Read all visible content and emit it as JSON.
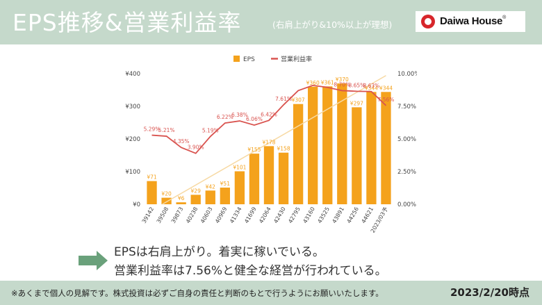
{
  "header": {
    "title": "EPS推移&営業利益率",
    "subtitle": "(右肩上がり&10%以上が理想)",
    "logo_text": "Daiwa House",
    "logo_mark": "®"
  },
  "message": {
    "line1": "EPSは右肩上がり。着実に稼いでいる。",
    "line2": "営業利益率は7.56%と健全な経営が行われている。"
  },
  "footer": {
    "disclaimer": "※あくまで個人の見解です。株式投資は必ずご自身の責任と判断のもとで行うようにお願いいたします。",
    "as_of": "2023/2/20時点"
  },
  "colors": {
    "header_bg": "#c5d9cb",
    "bar": "#f4a21c",
    "margin_line": "#d9534f",
    "trend_line": "#f7d9a3",
    "arrow": "#6aa17b"
  },
  "chart_data": {
    "type": "bar+line",
    "categories": [
      "39142",
      "39508",
      "39873",
      "40238",
      "40603",
      "40969",
      "41334",
      "41699",
      "42064",
      "42430",
      "42795",
      "43160",
      "43525",
      "43891",
      "44256",
      "44621",
      "2023/03予"
    ],
    "series": [
      {
        "name": "EPS",
        "axis": "left",
        "kind": "bar",
        "values": [
          71,
          20,
          6,
          29,
          42,
          51,
          101,
          155,
          178,
          158,
          307,
          360,
          361,
          370,
          297,
          344,
          344
        ],
        "labels": [
          "¥71",
          "¥20",
          "¥6",
          "¥29",
          "¥42",
          "¥51",
          "¥101",
          "¥155",
          "¥178",
          "¥158",
          "¥307",
          "¥360",
          "¥361",
          "¥370",
          "¥297",
          "¥344",
          "¥344"
        ]
      },
      {
        "name": "営業利益率",
        "axis": "right",
        "kind": "line",
        "values": [
          5.29,
          5.21,
          4.35,
          3.9,
          5.19,
          6.22,
          6.38,
          6.06,
          6.42,
          7.61,
          8.7,
          9.1,
          8.95,
          8.7,
          8.65,
          8.63,
          7.56
        ],
        "labels": [
          "5.29%",
          "5.21%",
          "4.35%",
          "3.90%",
          "5.19%",
          "6.22%",
          "6.38%",
          "6.06%",
          "6.42%",
          "7.61%",
          "",
          "",
          "",
          "8.70%",
          "8.65%",
          "8.63%",
          "7.56%"
        ]
      }
    ],
    "trendline": "linear (EPS)",
    "y_left": {
      "min": 0,
      "max": 400,
      "ticks": [
        "¥0",
        "¥100",
        "¥200",
        "¥300",
        "¥400"
      ]
    },
    "y_right": {
      "min": 0,
      "max": 10,
      "ticks": [
        "0.00%",
        "2.50%",
        "5.00%",
        "7.50%",
        "10.00%"
      ]
    },
    "legend": {
      "position": "top"
    },
    "grid": false
  }
}
